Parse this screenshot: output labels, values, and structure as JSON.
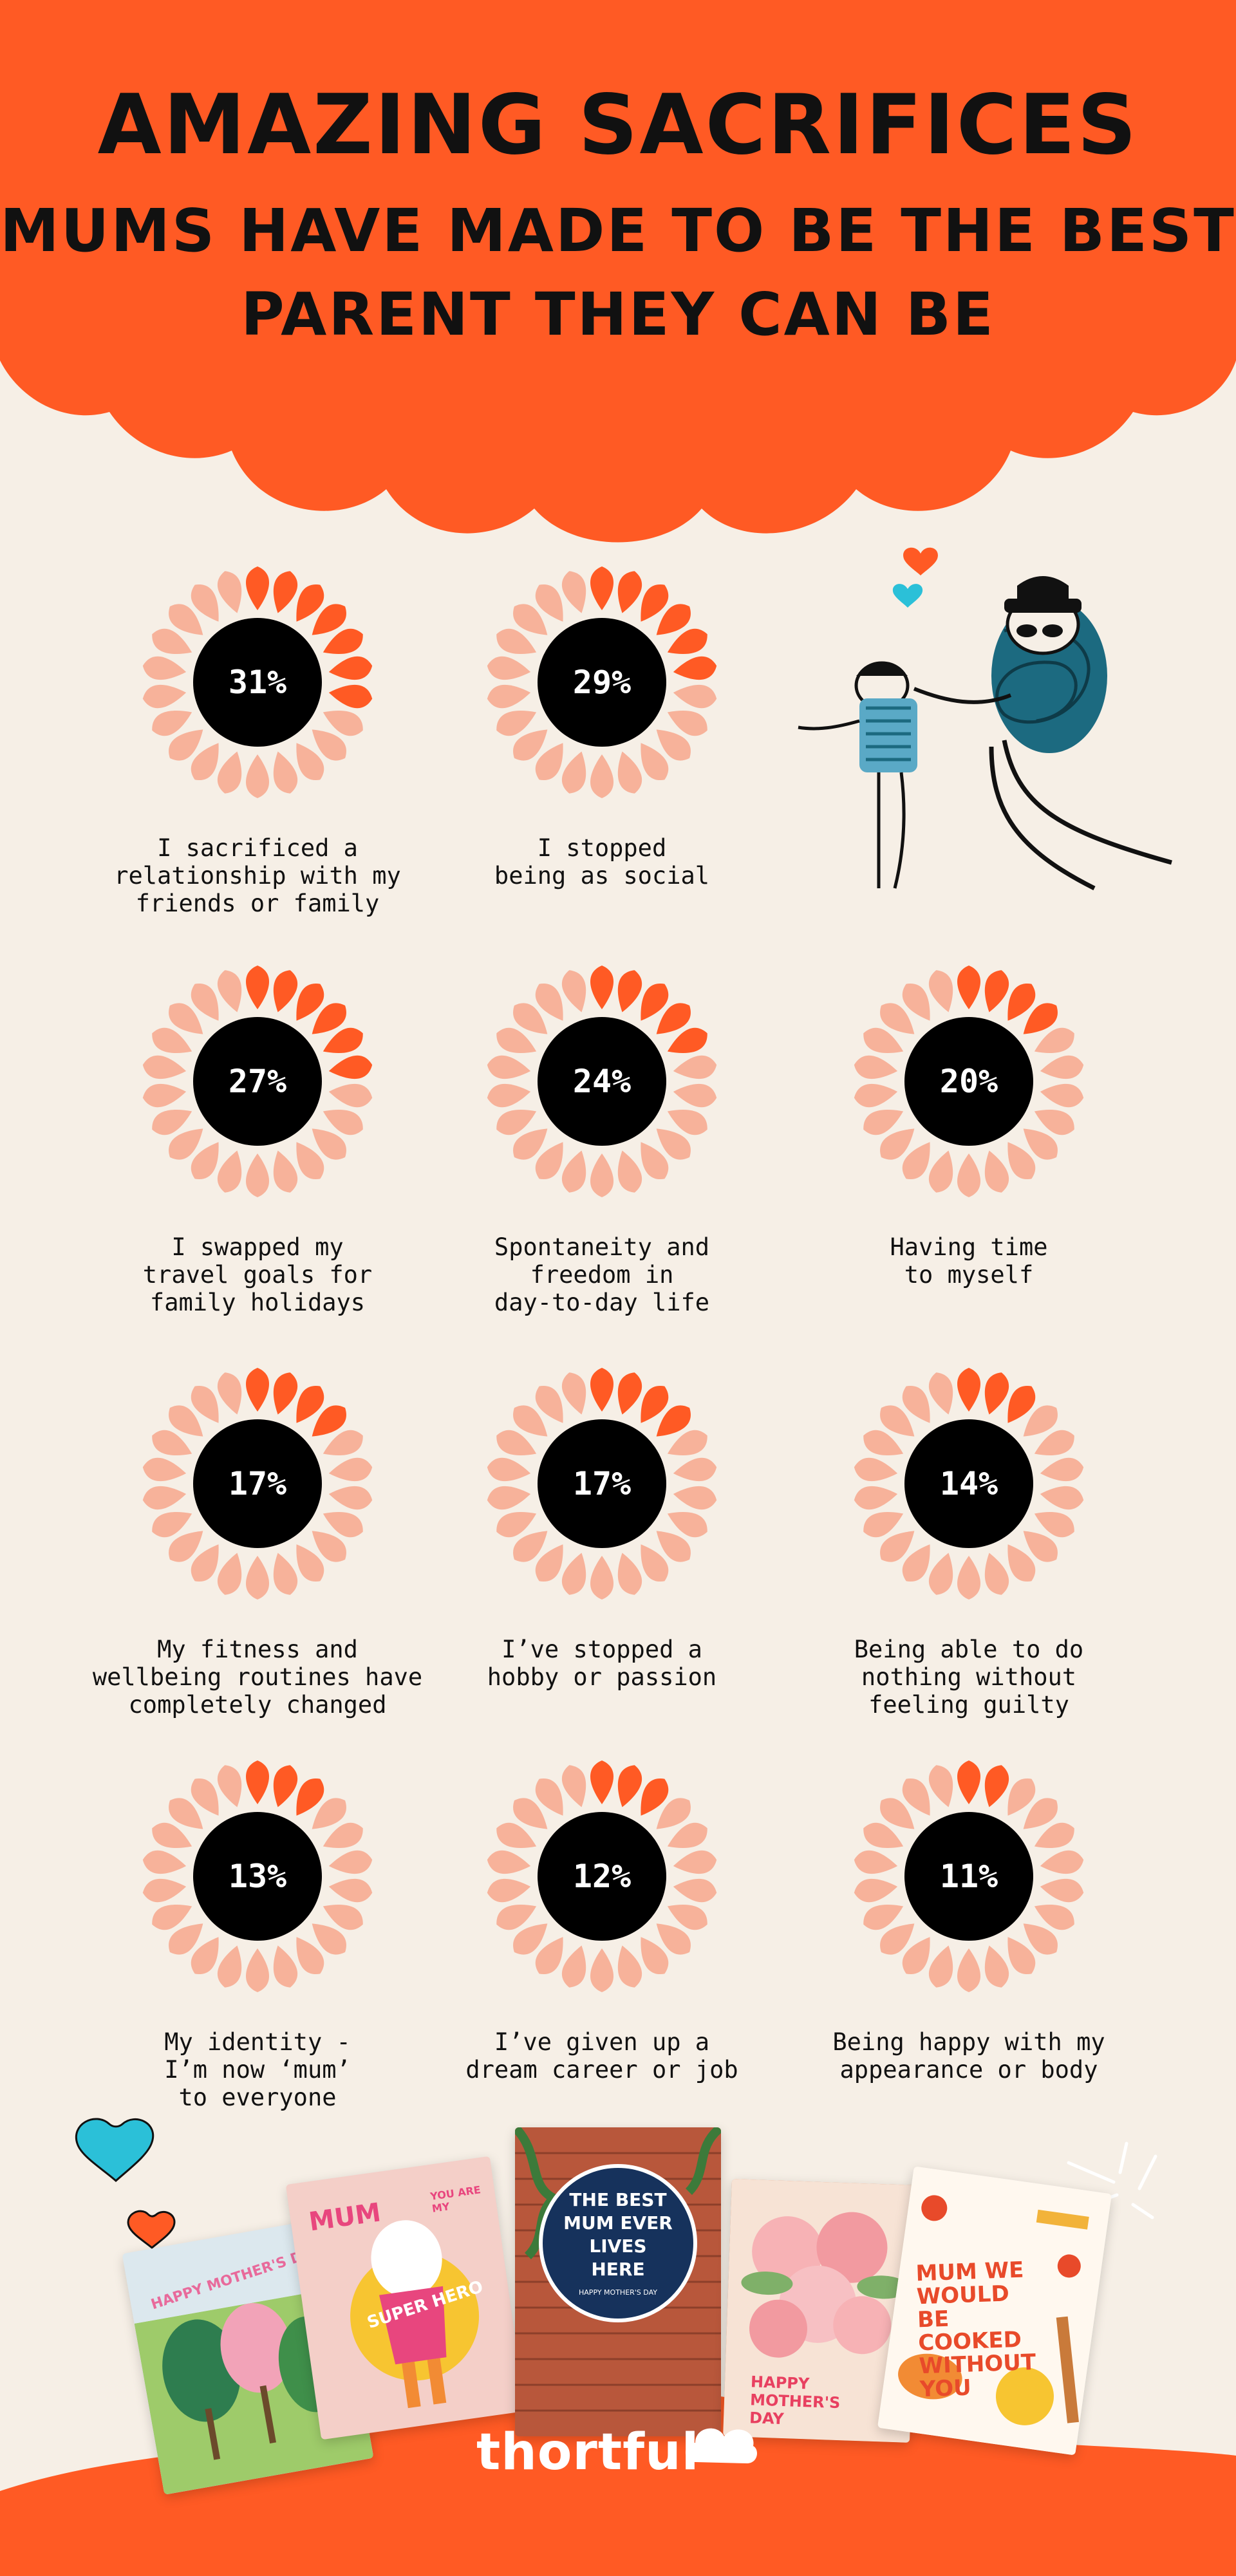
{
  "header": {
    "title_line_1": "AMAZING SACRIFICES",
    "title_line_2": "MUMS HAVE MADE TO BE THE BEST",
    "title_line_3": "PARENT THEY CAN BE"
  },
  "colors": {
    "accent": "#ff5a24",
    "petal_light": "#f7b29a",
    "petal_dark": "#ff5a24",
    "background": "#f6efe6",
    "ink": "#111111"
  },
  "stats": [
    {
      "value": "31%",
      "fraction": 0.31,
      "label": "I sacrificed a\nrelationship with my\nfriends or family"
    },
    {
      "value": "29%",
      "fraction": 0.29,
      "label": "I stopped\nbeing as social"
    },
    {
      "value": "27%",
      "fraction": 0.27,
      "label": "I swapped my\ntravel goals for\nfamily holidays"
    },
    {
      "value": "24%",
      "fraction": 0.24,
      "label": "Spontaneity and\nfreedom in\nday-to-day life"
    },
    {
      "value": "20%",
      "fraction": 0.2,
      "label": "Having time\nto myself"
    },
    {
      "value": "17%",
      "fraction": 0.17,
      "label": "My fitness and\nwellbeing routines have\ncompletely changed"
    },
    {
      "value": "17%",
      "fraction": 0.17,
      "label": "I’ve stopped a\nhobby or passion"
    },
    {
      "value": "14%",
      "fraction": 0.14,
      "label": "Being able to do\nnothing without\nfeeling guilty"
    },
    {
      "value": "13%",
      "fraction": 0.13,
      "label": "My identity -\nI’m now ‘mum’\nto everyone"
    },
    {
      "value": "12%",
      "fraction": 0.12,
      "label": "I’ve given up a\ndream career or job"
    },
    {
      "value": "11%",
      "fraction": 0.11,
      "label": "Being happy with my\nappearance or body"
    }
  ],
  "cards": {
    "card_1": "HAPPY MOTHER'S DAY",
    "card_2_top": "MUM",
    "card_2_hero": "SUPER HERO",
    "card_2_corner": "YOU ARE MY",
    "card_3": "THE BEST MUM EVER LIVES HERE",
    "card_3_sub": "HAPPY MOTHER'S DAY",
    "card_4": "HAPPY MOTHER'S DAY",
    "card_5": "MUM WE WOULD BE COOKED WITHOUT YOU"
  },
  "brand": {
    "name": "thortful"
  },
  "icons": [
    "heart-icon",
    "heart-icon",
    "heart-icon",
    "heart-icon",
    "sparkle-icon"
  ]
}
